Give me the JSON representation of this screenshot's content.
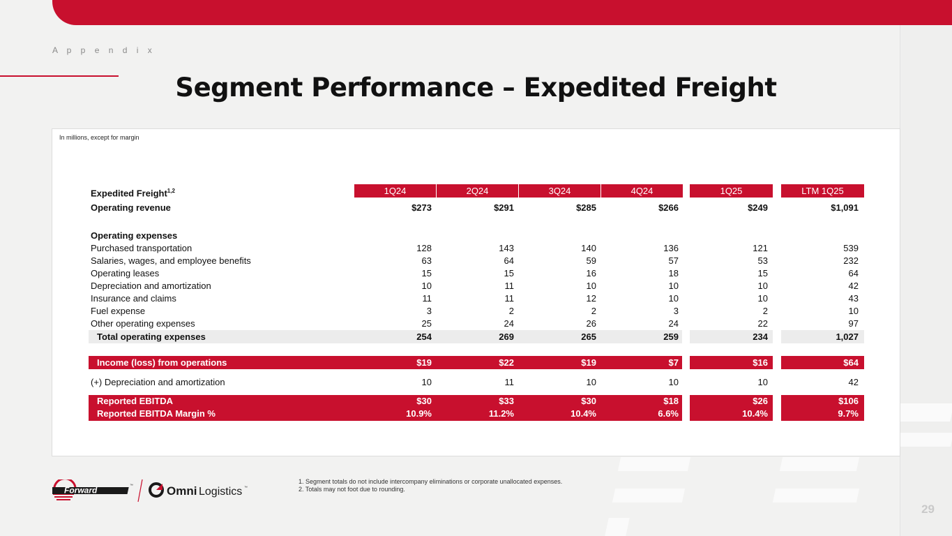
{
  "header": {
    "section": "A p p e n d i x",
    "title": "Segment Performance – Expedited Freight"
  },
  "table": {
    "note": "In millions, except for margin",
    "title": "Expedited Freight",
    "title_sup": "1,2",
    "columns": [
      "1Q24",
      "2Q24",
      "3Q24",
      "4Q24",
      "1Q25",
      "LTM 1Q25"
    ],
    "rows": {
      "revenue": {
        "label": "Operating revenue",
        "values": [
          "$273",
          "$291",
          "$285",
          "$266",
          "$249",
          "$1,091"
        ]
      },
      "opex_heading": "Operating expenses",
      "expenses": [
        {
          "label": "Purchased transportation",
          "values": [
            "128",
            "143",
            "140",
            "136",
            "121",
            "539"
          ]
        },
        {
          "label": "Salaries, wages, and employee benefits",
          "values": [
            "63",
            "64",
            "59",
            "57",
            "53",
            "232"
          ]
        },
        {
          "label": "Operating leases",
          "values": [
            "15",
            "15",
            "16",
            "18",
            "15",
            "64"
          ]
        },
        {
          "label": "Depreciation and amortization",
          "values": [
            "10",
            "11",
            "10",
            "10",
            "10",
            "42"
          ]
        },
        {
          "label": "Insurance and claims",
          "values": [
            "11",
            "11",
            "12",
            "10",
            "10",
            "43"
          ]
        },
        {
          "label": "Fuel expense",
          "values": [
            "3",
            "2",
            "2",
            "3",
            "2",
            "10"
          ]
        },
        {
          "label": "Other operating expenses",
          "values": [
            "25",
            "24",
            "26",
            "24",
            "22",
            "97"
          ]
        }
      ],
      "total": {
        "label": "Total operating expenses",
        "values": [
          "254",
          "269",
          "265",
          "259",
          "234",
          "1,027"
        ]
      },
      "income": {
        "label": "Income (loss) from operations",
        "values": [
          "$19",
          "$22",
          "$19",
          "$7",
          "$16",
          "$64"
        ]
      },
      "da_addback": {
        "label": "(+) Depreciation and amortization",
        "values": [
          "10",
          "11",
          "10",
          "10",
          "10",
          "42"
        ]
      },
      "ebitda": {
        "label": "Reported EBITDA",
        "values": [
          "$30",
          "$33",
          "$30",
          "$18",
          "$26",
          "$106"
        ]
      },
      "margin": {
        "label": "Reported EBITDA Margin %",
        "values": [
          "10.9%",
          "11.2%",
          "10.4%",
          "6.6%",
          "10.4%",
          "9.7%"
        ]
      }
    }
  },
  "footnotes": [
    "1.  Segment totals do not include intercompany eliminations or corporate unallocated expenses.",
    "2.  Totals may not foot due to rounding."
  ],
  "logos": {
    "forward": "Forward",
    "forward_tm": "™",
    "omni_a": "Omni",
    "omni_b": "Logistics",
    "omni_tm": "™"
  },
  "page_number": "29",
  "colors": {
    "brand_red": "#c8102e",
    "band_grey": "#ececec"
  }
}
